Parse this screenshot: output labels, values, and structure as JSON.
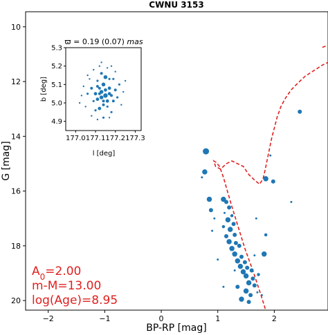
{
  "colors": {
    "points": "#1f77b4",
    "isochrone": "#e01f1f",
    "axes": "#000000"
  },
  "chart_data": [
    {
      "type": "scatter",
      "title": "CWNU 3153",
      "xlabel": "BP-RP [mag]",
      "ylabel": "G [mag]",
      "xlim": [
        -2.4,
        2.95
      ],
      "ylim": [
        20.35,
        9.45
      ],
      "y_inverted": true,
      "xticks": [
        -2,
        -1,
        0,
        1,
        2
      ],
      "yticks": [
        10,
        12,
        14,
        16,
        18,
        20
      ],
      "annotation_lines": [
        "A",
        "0",
        "=2.00",
        "m-M=13.00",
        "log(Age)=8.95"
      ],
      "isochrone": {
        "x": [
          1.84,
          1.78,
          1.7,
          1.62,
          1.55,
          1.48,
          1.42,
          1.36,
          1.3,
          1.24,
          1.17,
          1.1,
          1.03,
          0.97,
          0.93,
          0.96,
          1.05,
          1.15,
          1.25,
          1.35,
          1.45,
          1.55,
          1.65,
          1.74,
          1.8,
          1.83,
          1.86,
          1.88,
          1.91,
          1.95,
          2.0,
          2.05,
          2.12,
          2.2,
          2.3,
          2.42,
          2.55,
          2.7,
          2.85,
          2.95
        ],
        "y": [
          20.3,
          19.9,
          19.4,
          18.9,
          18.5,
          18.1,
          17.7,
          17.3,
          16.9,
          16.5,
          16.0,
          15.5,
          15.1,
          14.95,
          14.9,
          15.1,
          15.2,
          15.0,
          14.9,
          15.0,
          15.1,
          15.4,
          15.6,
          15.75,
          15.55,
          15.3,
          15.0,
          14.8,
          14.5,
          14.1,
          13.7,
          13.3,
          12.9,
          12.6,
          12.3,
          12.05,
          11.8,
          11.6,
          11.4,
          11.3
        ]
      },
      "isochrone_upper": {
        "x": [
          2.85,
          2.95
        ],
        "y": [
          10.75,
          10.68
        ]
      },
      "points": [
        {
          "x": 0.79,
          "y": 14.55,
          "s": 6
        },
        {
          "x": 0.77,
          "y": 15.3,
          "s": 5
        },
        {
          "x": 0.72,
          "y": 15.5,
          "s": 2
        },
        {
          "x": 0.85,
          "y": 16.3,
          "s": 5
        },
        {
          "x": 0.88,
          "y": 16.7,
          "s": 4
        },
        {
          "x": 0.94,
          "y": 17.0,
          "s": 2
        },
        {
          "x": 0.9,
          "y": 17.45,
          "s": 2
        },
        {
          "x": 1.1,
          "y": 16.3,
          "s": 5
        },
        {
          "x": 1.15,
          "y": 16.4,
          "s": 4
        },
        {
          "x": 1.2,
          "y": 16.6,
          "s": 4
        },
        {
          "x": 1.25,
          "y": 16.9,
          "s": 3
        },
        {
          "x": 1.12,
          "y": 16.8,
          "s": 2
        },
        {
          "x": 1.18,
          "y": 17.05,
          "s": 5
        },
        {
          "x": 1.28,
          "y": 17.2,
          "s": 4
        },
        {
          "x": 1.1,
          "y": 17.3,
          "s": 3
        },
        {
          "x": 1.22,
          "y": 17.4,
          "s": 5
        },
        {
          "x": 1.3,
          "y": 17.6,
          "s": 4
        },
        {
          "x": 1.15,
          "y": 17.65,
          "s": 4
        },
        {
          "x": 1.2,
          "y": 17.85,
          "s": 5
        },
        {
          "x": 1.32,
          "y": 17.9,
          "s": 4
        },
        {
          "x": 1.25,
          "y": 18.1,
          "s": 5
        },
        {
          "x": 1.38,
          "y": 18.0,
          "s": 4
        },
        {
          "x": 1.3,
          "y": 18.3,
          "s": 5
        },
        {
          "x": 1.42,
          "y": 18.4,
          "s": 4
        },
        {
          "x": 1.35,
          "y": 18.55,
          "s": 5
        },
        {
          "x": 1.48,
          "y": 18.6,
          "s": 4
        },
        {
          "x": 1.4,
          "y": 18.75,
          "s": 5
        },
        {
          "x": 1.52,
          "y": 18.8,
          "s": 4
        },
        {
          "x": 1.45,
          "y": 18.95,
          "s": 5
        },
        {
          "x": 1.6,
          "y": 18.9,
          "s": 4
        },
        {
          "x": 1.5,
          "y": 19.1,
          "s": 5
        },
        {
          "x": 1.62,
          "y": 19.2,
          "s": 4
        },
        {
          "x": 1.55,
          "y": 19.35,
          "s": 5
        },
        {
          "x": 1.65,
          "y": 19.45,
          "s": 4
        },
        {
          "x": 1.35,
          "y": 19.5,
          "s": 4
        },
        {
          "x": 1.5,
          "y": 19.65,
          "s": 5
        },
        {
          "x": 1.58,
          "y": 19.8,
          "s": 4
        },
        {
          "x": 1.42,
          "y": 19.95,
          "s": 5
        },
        {
          "x": 1.55,
          "y": 20.05,
          "s": 4
        },
        {
          "x": 1.3,
          "y": 18.9,
          "s": 2
        },
        {
          "x": 1.65,
          "y": 18.35,
          "s": 2
        },
        {
          "x": 1.72,
          "y": 19.05,
          "s": 3
        },
        {
          "x": 1.7,
          "y": 19.7,
          "s": 2
        },
        {
          "x": 1.85,
          "y": 17.6,
          "s": 3
        },
        {
          "x": 1.82,
          "y": 18.3,
          "s": 5
        },
        {
          "x": 1.78,
          "y": 19.8,
          "s": 2
        },
        {
          "x": 1.68,
          "y": 17.0,
          "s": 2
        },
        {
          "x": 1.0,
          "y": 18.5,
          "s": 2
        },
        {
          "x": 1.1,
          "y": 19.5,
          "s": 2
        },
        {
          "x": 1.85,
          "y": 15.55,
          "s": 5
        },
        {
          "x": 1.98,
          "y": 15.65,
          "s": 4
        },
        {
          "x": 2.3,
          "y": 16.4,
          "s": 2
        },
        {
          "x": 2.45,
          "y": 13.1,
          "s": 4
        },
        {
          "x": 1.93,
          "y": 14.7,
          "s": 2
        }
      ]
    },
    {
      "type": "scatter",
      "title": "ϖ = 0.19 (0.07) mas",
      "title_parts": [
        "ϖ = 0.19 (0.07) ",
        "mas"
      ],
      "xlabel": "l [deg]",
      "ylabel": "b [deg]",
      "xlim": [
        176.95,
        177.33
      ],
      "ylim": [
        4.85,
        5.3
      ],
      "xticks": [
        "177.0",
        "177.1",
        "177.2",
        "177.3"
      ],
      "xtick_values": [
        177.0,
        177.1,
        177.2,
        177.3
      ],
      "yticks": [
        "4.9",
        "5.0",
        "5.1",
        "5.2",
        "5.3"
      ],
      "ytick_values": [
        4.9,
        5.0,
        5.1,
        5.2,
        5.3
      ],
      "points": [
        {
          "x": 177.13,
          "y": 5.06,
          "s": 3.5
        },
        {
          "x": 177.15,
          "y": 5.04,
          "s": 4
        },
        {
          "x": 177.11,
          "y": 5.02,
          "s": 3
        },
        {
          "x": 177.17,
          "y": 5.08,
          "s": 3
        },
        {
          "x": 177.14,
          "y": 5.1,
          "s": 3.5
        },
        {
          "x": 177.12,
          "y": 5.08,
          "s": 2.5
        },
        {
          "x": 177.16,
          "y": 5.01,
          "s": 3
        },
        {
          "x": 177.18,
          "y": 5.04,
          "s": 2.5
        },
        {
          "x": 177.1,
          "y": 5.05,
          "s": 3
        },
        {
          "x": 177.14,
          "y": 4.99,
          "s": 2.5
        },
        {
          "x": 177.12,
          "y": 4.97,
          "s": 3
        },
        {
          "x": 177.16,
          "y": 4.98,
          "s": 2
        },
        {
          "x": 177.19,
          "y": 5.01,
          "s": 2.5
        },
        {
          "x": 177.08,
          "y": 5.08,
          "s": 2.5
        },
        {
          "x": 177.2,
          "y": 5.07,
          "s": 2.5
        },
        {
          "x": 177.15,
          "y": 5.14,
          "s": 3.5
        },
        {
          "x": 177.11,
          "y": 5.12,
          "s": 2
        },
        {
          "x": 177.09,
          "y": 5.01,
          "s": 2
        },
        {
          "x": 177.22,
          "y": 5.1,
          "s": 2
        },
        {
          "x": 177.06,
          "y": 5.05,
          "s": 2
        },
        {
          "x": 177.17,
          "y": 5.13,
          "s": 2
        },
        {
          "x": 177.13,
          "y": 5.16,
          "s": 2.5
        },
        {
          "x": 177.18,
          "y": 4.95,
          "s": 2
        },
        {
          "x": 177.1,
          "y": 4.96,
          "s": 2
        },
        {
          "x": 177.05,
          "y": 4.98,
          "s": 1.5
        },
        {
          "x": 177.23,
          "y": 4.99,
          "s": 1.5
        },
        {
          "x": 177.07,
          "y": 5.13,
          "s": 1.5
        },
        {
          "x": 177.24,
          "y": 5.06,
          "s": 1.5
        },
        {
          "x": 177.03,
          "y": 5.04,
          "s": 1.5
        },
        {
          "x": 177.12,
          "y": 5.2,
          "s": 1.5
        },
        {
          "x": 177.16,
          "y": 5.19,
          "s": 1.5
        },
        {
          "x": 177.2,
          "y": 5.17,
          "s": 1.5
        },
        {
          "x": 177.19,
          "y": 5.13,
          "s": 2
        },
        {
          "x": 177.06,
          "y": 5.15,
          "s": 1.5
        },
        {
          "x": 177.14,
          "y": 4.92,
          "s": 2
        },
        {
          "x": 177.11,
          "y": 4.91,
          "s": 1.5
        },
        {
          "x": 177.17,
          "y": 4.92,
          "s": 1.5
        },
        {
          "x": 177.04,
          "y": 5.09,
          "s": 1.5
        },
        {
          "x": 177.09,
          "y": 5.18,
          "s": 1.5
        },
        {
          "x": 177.21,
          "y": 5.03,
          "s": 2
        },
        {
          "x": 177.08,
          "y": 4.93,
          "s": 1.5
        },
        {
          "x": 177.25,
          "y": 5.12,
          "s": 1.5
        },
        {
          "x": 177.02,
          "y": 5.0,
          "s": 1.5
        },
        {
          "x": 177.13,
          "y": 5.22,
          "s": 1.5
        },
        {
          "x": 177.18,
          "y": 5.2,
          "s": 1.5
        },
        {
          "x": 177.11,
          "y": 5.09,
          "s": 2.5
        },
        {
          "x": 177.15,
          "y": 5.07,
          "s": 3
        },
        {
          "x": 177.13,
          "y": 5.03,
          "s": 3.5
        },
        {
          "x": 177.17,
          "y": 5.05,
          "s": 3
        },
        {
          "x": 177.12,
          "y": 5.05,
          "s": 2.5
        },
        {
          "x": 177.14,
          "y": 5.01,
          "s": 2.5
        }
      ]
    }
  ]
}
